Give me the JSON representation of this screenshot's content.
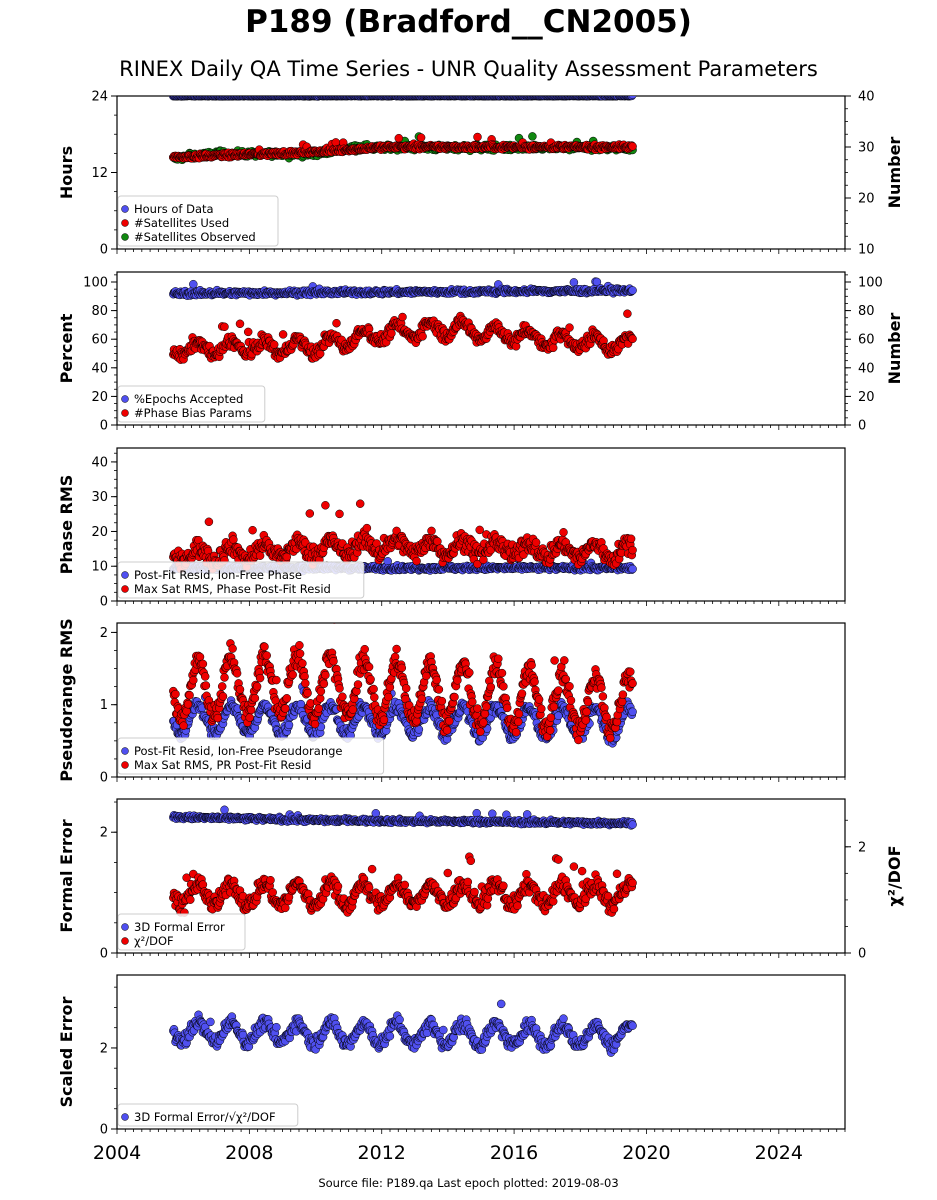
{
  "title": "P189 (Bradford__CN2005)",
  "subtitle": "RINEX Daily QA Time Series - UNR Quality Assessment Parameters",
  "footer": "Source file: P189.qa Last epoch plotted: 2019-08-03",
  "colors": {
    "blue": "#5050f0",
    "red": "#ee0000",
    "green": "#118811",
    "edge": "#000000"
  },
  "chart_data": [
    {
      "type": "scatter",
      "id": "hours",
      "xlim": [
        2004,
        2026
      ],
      "data_range": [
        2005.7,
        2019.58
      ],
      "x_ticks": [
        2004,
        2008,
        2012,
        2016,
        2020,
        2024
      ],
      "ylabel": "Hours",
      "ylim": [
        0,
        24
      ],
      "yticks": [
        0,
        12,
        24
      ],
      "ylabel_right": "Number",
      "ylim_right": [
        10,
        40
      ],
      "yticks_right": [
        10,
        20,
        30,
        40
      ],
      "legend": "lower-left",
      "series": [
        {
          "name": "Hours of Data",
          "color": "blue",
          "axis": "left",
          "base": 24,
          "noise": 0.05,
          "trend": [
            [
              2005.7,
              24
            ],
            [
              2019.6,
              24
            ]
          ]
        },
        {
          "name": "#Satellites Used",
          "color": "red",
          "axis": "right",
          "base": 29,
          "noise": 0.4,
          "trend": [
            [
              2005.7,
              28
            ],
            [
              2010,
              29
            ],
            [
              2012,
              30
            ],
            [
              2019.6,
              30
            ]
          ]
        },
        {
          "name": "#Satellites Observed",
          "color": "green",
          "axis": "right",
          "base": 29,
          "noise": 0.5,
          "trend": [
            [
              2005.7,
              27.7
            ],
            [
              2007,
              28.7
            ],
            [
              2010,
              28.6
            ],
            [
              2011,
              29.9
            ],
            [
              2019.6,
              29.8
            ]
          ]
        }
      ]
    },
    {
      "type": "scatter",
      "id": "percent",
      "xlim": [
        2004,
        2026
      ],
      "ylabel": "Percent",
      "ylim": [
        0,
        107
      ],
      "yticks": [
        0,
        20,
        40,
        60,
        80,
        100
      ],
      "ylabel_right": "Number",
      "ylim_right": [
        0,
        107
      ],
      "yticks_right": [
        0,
        20,
        40,
        60,
        80,
        100
      ],
      "legend": "lower-left",
      "series": [
        {
          "name": "%Epochs Accepted",
          "color": "blue",
          "axis": "left",
          "base": 93,
          "noise": 1.5,
          "trend": [
            [
              2005.7,
              92
            ],
            [
              2019.6,
              94
            ]
          ]
        },
        {
          "name": "#Phase Bias Params",
          "color": "red",
          "axis": "right",
          "base": 58,
          "noise": 4,
          "seasonal": 5,
          "trend": [
            [
              2005.7,
              53
            ],
            [
              2010,
              55
            ],
            [
              2012,
              64
            ],
            [
              2014,
              68
            ],
            [
              2017,
              60
            ],
            [
              2019.6,
              56
            ]
          ]
        }
      ]
    },
    {
      "type": "scatter",
      "id": "phase",
      "xlim": [
        2004,
        2026
      ],
      "ylabel": "Phase RMS",
      "ylim": [
        0,
        44
      ],
      "yticks": [
        0,
        10,
        20,
        30,
        40
      ],
      "legend": "lower-left",
      "series": [
        {
          "name": "Post-Fit Resid, Ion-Free Phase",
          "color": "blue",
          "axis": "left",
          "base": 9.5,
          "noise": 0.6,
          "trend": [
            [
              2005.7,
              9.5
            ],
            [
              2019.6,
              9.5
            ]
          ]
        },
        {
          "name": "Max Sat RMS, Phase Post-Fit Resid",
          "color": "red",
          "axis": "left",
          "base": 14,
          "noise": 2.5,
          "seasonal": 2,
          "trend": [
            [
              2005.7,
              13
            ],
            [
              2012,
              16
            ],
            [
              2016,
              15
            ],
            [
              2019.6,
              14
            ]
          ]
        }
      ]
    },
    {
      "type": "scatter",
      "id": "pseudorange",
      "xlim": [
        2004,
        2026
      ],
      "ylabel": "Pseudorange RMS",
      "ylim": [
        0,
        2.13
      ],
      "yticks": [
        0,
        1,
        2
      ],
      "legend": "lower-left",
      "series": [
        {
          "name": "Post-Fit Resid, Ion-Free Pseudorange",
          "color": "blue",
          "axis": "left",
          "base": 0.8,
          "noise": 0.08,
          "seasonal": 0.2,
          "trend": [
            [
              2005.7,
              0.8
            ],
            [
              2019.6,
              0.75
            ]
          ]
        },
        {
          "name": "Max Sat RMS, PR Post-Fit Resid",
          "color": "red",
          "axis": "left",
          "base": 1.1,
          "noise": 0.15,
          "seasonal": 0.4,
          "trend": [
            [
              2005.7,
              1.2
            ],
            [
              2009,
              1.3
            ],
            [
              2019.6,
              1.0
            ]
          ]
        }
      ]
    },
    {
      "type": "scatter",
      "id": "formal",
      "xlim": [
        2004,
        2026
      ],
      "ylabel": "Formal Error",
      "ylim": [
        0,
        2.55
      ],
      "yticks": [
        0,
        2
      ],
      "ylabel_right": "χ²/DOF",
      "ylim_right": [
        0,
        2.9
      ],
      "yticks_right": [
        0,
        2
      ],
      "legend": "lower-left",
      "series": [
        {
          "name": "3D Formal Error",
          "color": "blue",
          "axis": "left",
          "base": 2.2,
          "noise": 0.03,
          "trend": [
            [
              2005.7,
              2.25
            ],
            [
              2010,
              2.2
            ],
            [
              2019.6,
              2.15
            ]
          ]
        },
        {
          "name": "χ²/DOF",
          "color": "red",
          "axis": "right",
          "base": 1.1,
          "noise": 0.15,
          "seasonal": 0.2,
          "trend": [
            [
              2005.7,
              1.1
            ],
            [
              2019.6,
              1.1
            ]
          ]
        }
      ]
    },
    {
      "type": "scatter",
      "id": "scaled",
      "xlim": [
        2004,
        2026
      ],
      "ylabel": "Scaled Error",
      "ylim": [
        0,
        3.8
      ],
      "yticks": [
        0,
        2
      ],
      "legend": "lower-left",
      "series": [
        {
          "name": "3D Formal Error/√χ²/DOF",
          "color": "blue",
          "axis": "left",
          "base": 2.3,
          "noise": 0.15,
          "seasonal": 0.25,
          "trend": [
            [
              2005.7,
              2.4
            ],
            [
              2019.6,
              2.3
            ]
          ]
        }
      ]
    }
  ]
}
